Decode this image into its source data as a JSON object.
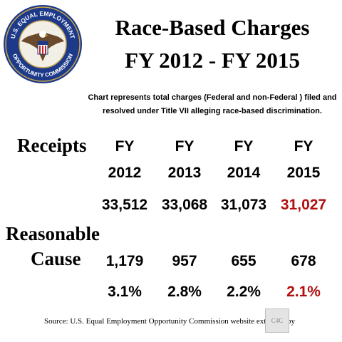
{
  "seal": {
    "top_text": "U.S. EQUAL EMPLOYMENT",
    "bottom_text": "OPPORTUNITY COMMISSION"
  },
  "title": {
    "line1": "Race-Based Charges",
    "line2": "FY 2012 - FY 2015"
  },
  "note": {
    "line1": "Chart represents  total charges  (Federal and non-Federal ) filed and",
    "line2": "resolved under Title VII alleging race-based discrimination."
  },
  "labels": {
    "receipts": "Receipts",
    "reasonable": "Reasonable",
    "cause": "Cause"
  },
  "years": [
    {
      "fy": "FY",
      "year": "2012",
      "receipts": "33,512",
      "cause": "1,179",
      "pct": "3.1%"
    },
    {
      "fy": "FY",
      "year": "2013",
      "receipts": "33,068",
      "cause": "957",
      "pct": "2.8%"
    },
    {
      "fy": "FY",
      "year": "2014",
      "receipts": "31,073",
      "cause": "655",
      "pct": "2.2%"
    },
    {
      "fy": "FY",
      "year": "2015",
      "receipts": "31,027",
      "cause": "678",
      "pct": "2.1%"
    }
  ],
  "colors": {
    "highlight": "#b01010",
    "text": "#000000"
  },
  "source": "Source: U.S. Equal Employment Opportunity Commission website extracted by",
  "badge": "C4C"
}
